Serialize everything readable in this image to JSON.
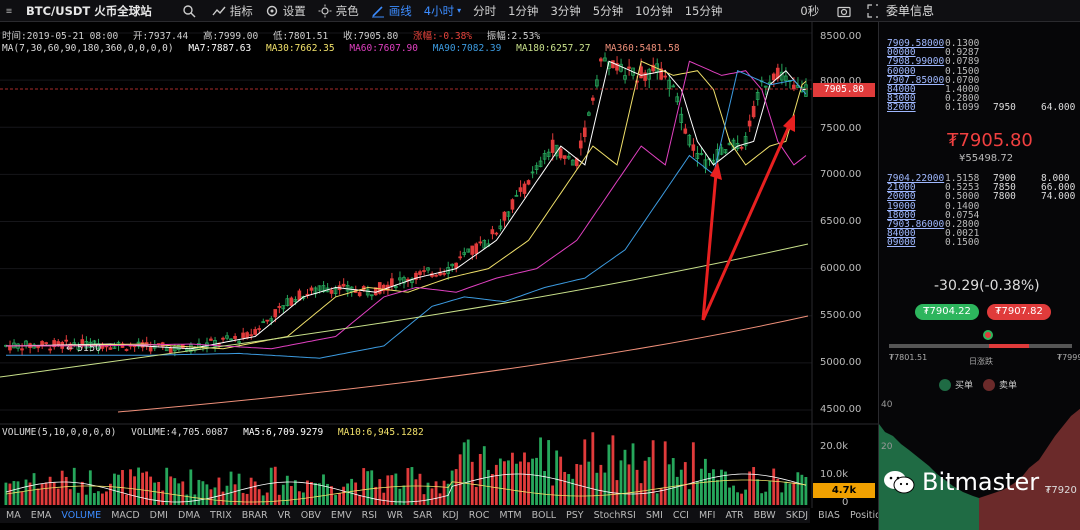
{
  "toolbar": {
    "symbol": "BTC/USDT 火币全球站",
    "indicators_label": "指标",
    "settings_label": "设置",
    "theme_label": "亮色",
    "draw_label": "画线",
    "interval_selected": "4小时",
    "intervals": [
      "分时",
      "1分钟",
      "3分钟",
      "5分钟",
      "10分钟",
      "15分钟"
    ],
    "countdown": "0秒"
  },
  "right_title": "委单信息",
  "info_line": {
    "time": "时间:2019-05-21 08:00",
    "open": "开:7937.44",
    "high": "高:7999.00",
    "low": "低:7801.51",
    "close": "收:7905.80",
    "change": "涨幅:-0.38%",
    "amplitude": "振幅:2.53%"
  },
  "ma_line": {
    "label": "MA(7,30,60,90,180,360,0,0,0,0)",
    "ma7": "MA7:7887.63",
    "ma30": "MA30:7662.35",
    "ma60": "MA60:7607.90",
    "ma90": "MA90:7082.39",
    "ma180": "MA180:6257.27",
    "ma360": "MA360:5481.58"
  },
  "volume_line": {
    "label": "VOLUME(5,10,0,0,0,0)",
    "volume": "VOLUME:4,705.0087",
    "ma5": "MA5:6,709.9279",
    "ma10": "MA10:6,945.1282"
  },
  "price_axis": [
    "8500.00",
    "8000.00",
    "7500.00",
    "7000.00",
    "6500.00",
    "6000.00",
    "5500.00",
    "5000.00",
    "4500.00"
  ],
  "volume_axis": [
    "20.0k",
    "10.0k",
    "0"
  ],
  "current_price_tag": "7905.80",
  "volume_tag": "4.7k",
  "low_marker": "← 5150",
  "indicator_tabs": [
    "MA",
    "EMA",
    "VOLUME",
    "MACD",
    "DMI",
    "DMA",
    "TRIX",
    "BRAR",
    "VR",
    "OBV",
    "EMV",
    "RSI",
    "WR",
    "SAR",
    "KDJ",
    "ROC",
    "MTM",
    "BOLL",
    "PSY",
    "StochRSI",
    "SMI",
    "CCI",
    "MFI",
    "ATR",
    "BBW",
    "SKDJ",
    "BIAS",
    "Position"
  ],
  "indicator_active": "VOLUME",
  "orderbook": {
    "asks": [
      {
        "price": "7909.58000",
        "amount": "0.1300",
        "cum": "",
        "depth": ""
      },
      {
        "price": "00000",
        "amount": "0.9287",
        "cum": "",
        "depth": ""
      },
      {
        "price": "7908.99000",
        "amount": "0.0789",
        "cum": "",
        "depth": ""
      },
      {
        "price": "60000",
        "amount": "0.1500",
        "cum": "",
        "depth": ""
      },
      {
        "price": "7907.85000",
        "amount": "0.0700",
        "cum": "",
        "depth": ""
      },
      {
        "price": "84000",
        "amount": "1.4000",
        "cum": "",
        "depth": ""
      },
      {
        "price": "83000",
        "amount": "0.2800",
        "cum": "",
        "depth": ""
      },
      {
        "price": "82000",
        "amount": "0.1099",
        "cum": "7950",
        "depth": "64.000"
      }
    ],
    "last_price": "₮7905.80",
    "last_price_cny": "¥55498.72",
    "bids": [
      {
        "price": "7904.22000",
        "amount": "1.5158",
        "cum": "7900",
        "depth": "8.000"
      },
      {
        "price": "21000",
        "amount": "0.5253",
        "cum": "7850",
        "depth": "66.000"
      },
      {
        "price": "20000",
        "amount": "0.5000",
        "cum": "7800",
        "depth": "74.000"
      },
      {
        "price": "19000",
        "amount": "0.1400",
        "cum": "",
        "depth": ""
      },
      {
        "price": "18000",
        "amount": "0.0754",
        "cum": "",
        "depth": ""
      },
      {
        "price": "7903.86000",
        "amount": "0.2800",
        "cum": "",
        "depth": ""
      },
      {
        "price": "84000",
        "amount": "0.0021",
        "cum": "",
        "depth": ""
      },
      {
        "price": "09000",
        "amount": "0.1500",
        "cum": "",
        "depth": ""
      }
    ]
  },
  "daily_change": "-30.29(-0.38%)",
  "best_bid": "₮7904.22",
  "best_ask": "₮7907.82",
  "range_low": "₮7801.51",
  "range_high": "₮7999",
  "range_label": "日涨跌",
  "legend_buy": "买单",
  "legend_sell": "卖单",
  "depth_axis": [
    "40",
    "20"
  ],
  "depth_x_label": "₮7920",
  "watermark": "Bitmaster",
  "colors": {
    "up": "#26a65b",
    "down": "#e03b3b",
    "ma7": "#ffffff",
    "ma30": "#f0e06a",
    "ma60": "#e040c0",
    "ma90": "#3c9be0",
    "ma180": "#c8e08a",
    "ma360": "#f0907a",
    "accent": "#3c8cff"
  }
}
